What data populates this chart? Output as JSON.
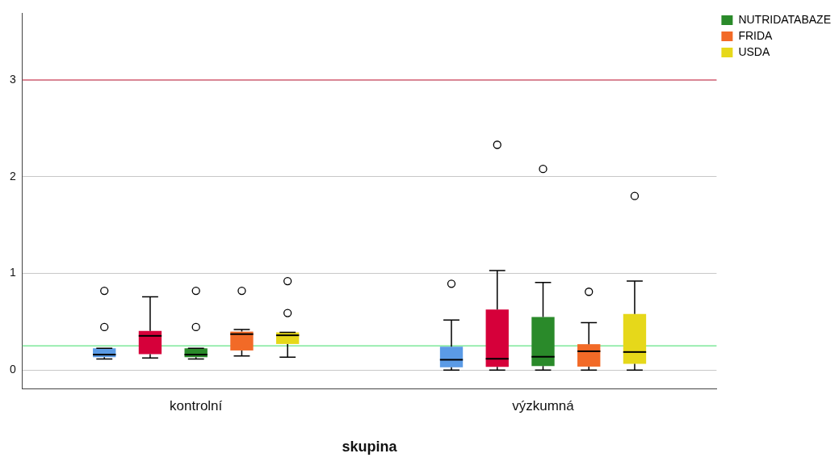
{
  "chart_data": {
    "type": "box",
    "xlabel": "skupina",
    "categories": [
      "kontrolní",
      "výzkumná"
    ],
    "ylim": [
      -0.19,
      3.69
    ],
    "yticks": [
      0,
      1,
      2,
      3
    ],
    "grid": "y",
    "legend": "top right",
    "ref_lines": [
      {
        "axis": "y",
        "value": 3,
        "color": "#d9667a"
      },
      {
        "axis": "y",
        "value": 0.25,
        "color": "#7ee89a"
      }
    ],
    "series": [
      {
        "color": "#5b9be6",
        "boxes": [
          {
            "low": 0.115,
            "q1": 0.133,
            "median": 0.16,
            "q3": 0.225,
            "high": 0.225,
            "outliers": [
              0.445,
              0.82
            ]
          },
          {
            "low": 0,
            "q1": 0.029,
            "median": 0.107,
            "q3": 0.242,
            "high": 0.518,
            "outliers": [
              0.893
            ]
          }
        ]
      },
      {
        "color": "#d6003a",
        "boxes": [
          {
            "low": 0.125,
            "q1": 0.164,
            "median": 0.354,
            "q3": 0.406,
            "high": 0.758
          },
          {
            "low": 0,
            "q1": 0.034,
            "median": 0.117,
            "q3": 0.627,
            "high": 1.03,
            "outliers": [
              2.33
            ]
          }
        ]
      },
      {
        "name": "NUTRIDATABAZE",
        "color": "#2a8a2a",
        "boxes": [
          {
            "low": 0.115,
            "q1": 0.133,
            "median": 0.16,
            "q3": 0.225,
            "high": 0.225,
            "outliers": [
              0.445,
              0.82
            ]
          },
          {
            "low": 0,
            "q1": 0.042,
            "median": 0.138,
            "q3": 0.549,
            "high": 0.906,
            "outliers": [
              2.08
            ]
          }
        ]
      },
      {
        "name": "FRIDA",
        "color": "#f26a27",
        "boxes": [
          {
            "low": 0.146,
            "q1": 0.203,
            "median": 0.372,
            "q3": 0.398,
            "high": 0.42,
            "outliers": [
              0.82
            ]
          },
          {
            "low": 0,
            "q1": 0.036,
            "median": 0.195,
            "q3": 0.268,
            "high": 0.49,
            "outliers": [
              0.81
            ]
          }
        ]
      },
      {
        "name": "USDA",
        "color": "#e6d81a",
        "boxes": [
          {
            "low": 0.133,
            "q1": 0.27,
            "median": 0.36,
            "q3": 0.39,
            "high": 0.39,
            "outliers": [
              0.59,
              0.92
            ]
          },
          {
            "low": 0,
            "q1": 0.065,
            "median": 0.187,
            "q3": 0.58,
            "high": 0.92,
            "outliers": [
              1.8
            ]
          }
        ]
      }
    ]
  }
}
